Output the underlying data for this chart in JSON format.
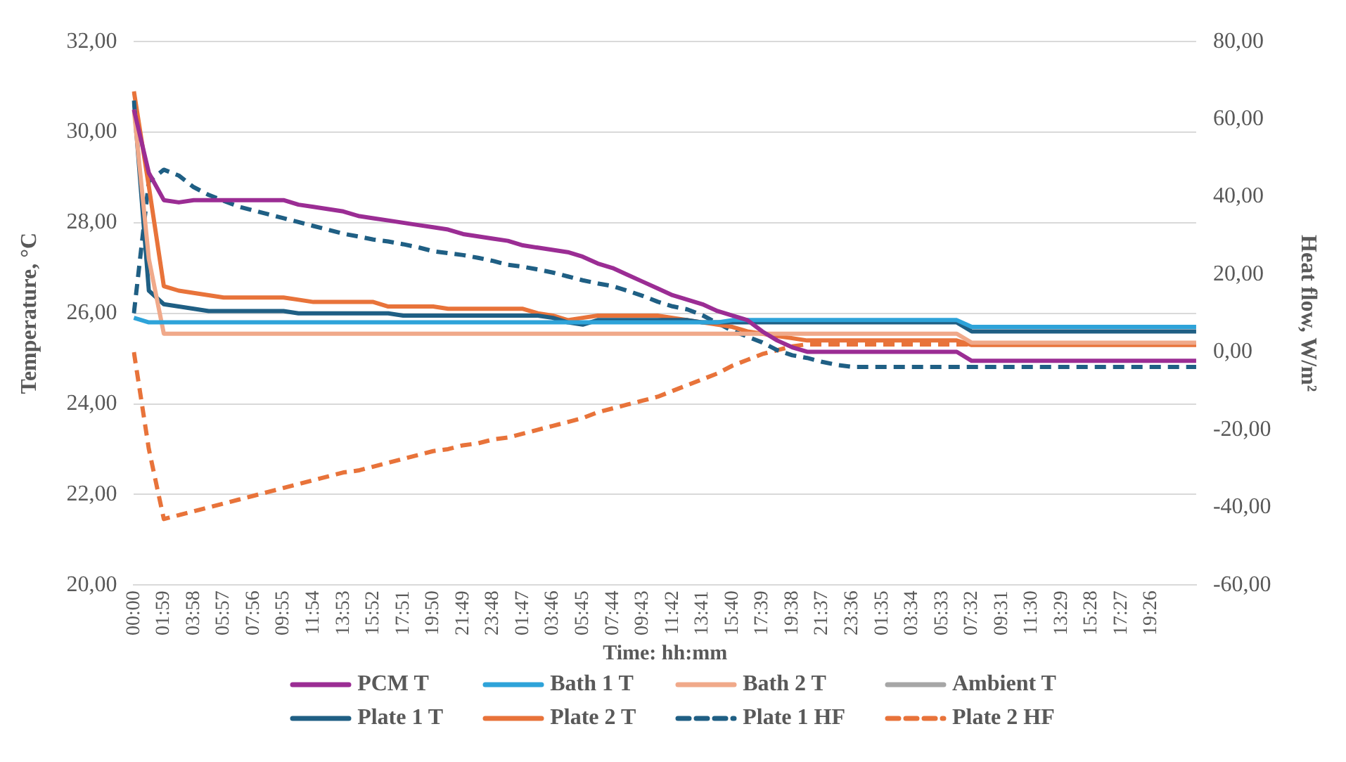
{
  "chart_data": {
    "type": "line",
    "xlabel": "Time: hh:mm",
    "ylabel": "Temperature, °C",
    "y2label": "Heat flow, W/m²",
    "categories": [
      "00:00",
      null,
      "01:59",
      null,
      "03:58",
      null,
      "05:57",
      null,
      "07:56",
      null,
      "09:55",
      null,
      "11:54",
      null,
      "13:53",
      null,
      "15:52",
      null,
      "17:51",
      null,
      "19:50",
      null,
      "21:49",
      null,
      "23:48",
      null,
      "01:47",
      null,
      "03:46",
      null,
      "05:45",
      null,
      "07:44",
      null,
      "09:43",
      null,
      "11:42",
      null,
      "13:41",
      null,
      "15:40",
      null,
      "17:39",
      null,
      "19:38",
      null,
      "21:37",
      null,
      "23:36",
      null,
      "01:35",
      null,
      "03:34",
      null,
      "05:33",
      null,
      "07:32",
      null,
      "09:31",
      null,
      "11:30",
      null,
      "13:29",
      null,
      "15:28",
      null,
      "17:27",
      null,
      "19:26",
      null,
      null,
      null
    ],
    "ylim": [
      20,
      32
    ],
    "yticks": [
      {
        "value": 20,
        "label": "20,00"
      },
      {
        "value": 22,
        "label": "22,00"
      },
      {
        "value": 24,
        "label": "24,00"
      },
      {
        "value": 26,
        "label": "26,00"
      },
      {
        "value": 28,
        "label": "28,00"
      },
      {
        "value": 30,
        "label": "30,00"
      },
      {
        "value": 32,
        "label": "32,00"
      }
    ],
    "y2lim": [
      -60,
      80
    ],
    "y2ticks": [
      {
        "value": -60,
        "label": "-60,00"
      },
      {
        "value": -40,
        "label": "-40,00"
      },
      {
        "value": -20,
        "label": "-20,00"
      },
      {
        "value": 0,
        "label": "0,00"
      },
      {
        "value": 20,
        "label": "20,00"
      },
      {
        "value": 40,
        "label": "40,00"
      },
      {
        "value": 60,
        "label": "60,00"
      },
      {
        "value": 80,
        "label": "80,00"
      }
    ],
    "grid": "y",
    "legend": "bottom",
    "marker": "none",
    "series": [
      {
        "name": "PCM T",
        "color": "#9b2d94",
        "values": [
          30.5,
          29.1,
          28.5,
          28.45,
          28.5,
          28.5,
          28.5,
          28.5,
          28.5,
          28.5,
          28.5,
          28.4,
          28.35,
          28.3,
          28.25,
          28.15,
          28.1,
          28.05,
          28.0,
          27.95,
          27.9,
          27.85,
          27.75,
          27.7,
          27.65,
          27.6,
          27.5,
          27.45,
          27.4,
          27.35,
          27.25,
          27.1,
          27.0,
          26.85,
          26.7,
          26.55,
          26.4,
          26.3,
          26.2,
          26.05,
          25.95,
          25.85,
          25.6,
          25.4,
          25.25,
          25.15,
          25.15,
          25.15,
          25.15,
          25.15,
          25.15,
          25.15,
          25.15,
          25.15,
          25.15,
          25.15,
          24.95,
          24.95,
          24.95,
          24.95,
          24.95,
          24.95,
          24.95,
          24.95,
          24.95,
          24.95,
          24.95,
          24.95,
          24.95,
          24.95,
          24.95,
          24.95
        ]
      },
      {
        "name": "Bath 1 T",
        "color": "#2ea3d9",
        "values": [
          25.9,
          25.8,
          25.8,
          25.8,
          25.8,
          25.8,
          25.8,
          25.8,
          25.8,
          25.8,
          25.8,
          25.8,
          25.8,
          25.8,
          25.8,
          25.8,
          25.8,
          25.8,
          25.8,
          25.8,
          25.8,
          25.8,
          25.8,
          25.8,
          25.8,
          25.8,
          25.8,
          25.8,
          25.8,
          25.8,
          25.8,
          25.8,
          25.8,
          25.8,
          25.8,
          25.8,
          25.8,
          25.8,
          25.8,
          25.8,
          25.85,
          25.85,
          25.85,
          25.85,
          25.85,
          25.85,
          25.85,
          25.85,
          25.85,
          25.85,
          25.85,
          25.85,
          25.85,
          25.85,
          25.85,
          25.85,
          25.7,
          25.7,
          25.7,
          25.7,
          25.7,
          25.7,
          25.7,
          25.7,
          25.7,
          25.7,
          25.7,
          25.7,
          25.7,
          25.7,
          25.7,
          25.7
        ]
      },
      {
        "name": "Bath 2 T",
        "color": "#f0a98a",
        "values": [
          30.5,
          27.2,
          25.55,
          25.55,
          25.55,
          25.55,
          25.55,
          25.55,
          25.55,
          25.55,
          25.55,
          25.55,
          25.55,
          25.55,
          25.55,
          25.55,
          25.55,
          25.55,
          25.55,
          25.55,
          25.55,
          25.55,
          25.55,
          25.55,
          25.55,
          25.55,
          25.55,
          25.55,
          25.55,
          25.55,
          25.55,
          25.55,
          25.55,
          25.55,
          25.55,
          25.55,
          25.55,
          25.55,
          25.55,
          25.55,
          25.55,
          25.55,
          25.55,
          25.55,
          25.55,
          25.55,
          25.55,
          25.55,
          25.55,
          25.55,
          25.55,
          25.55,
          25.55,
          25.55,
          25.55,
          25.55,
          25.35,
          25.35,
          25.35,
          25.35,
          25.35,
          25.35,
          25.35,
          25.35,
          25.35,
          25.35,
          25.35,
          25.35,
          25.35,
          25.35,
          25.35,
          25.35
        ]
      },
      {
        "name": "Ambient T",
        "color": "#a6a6a6",
        "values": [
          null,
          null,
          null,
          null,
          null,
          null,
          null,
          null,
          null,
          null,
          null,
          null,
          null,
          null,
          null,
          null,
          null,
          null,
          null,
          null,
          null,
          null,
          null,
          null,
          null,
          null,
          null,
          null,
          null,
          null,
          null,
          null,
          null,
          null,
          null,
          null,
          null,
          null,
          null,
          null,
          null,
          null,
          null,
          null,
          null,
          null,
          null,
          null,
          null,
          null,
          null,
          null,
          null,
          null,
          null,
          null,
          null,
          null,
          null,
          null,
          null,
          null,
          null,
          null,
          null,
          null,
          null,
          null,
          null,
          null,
          null,
          null
        ]
      },
      {
        "name": "Plate 1 T",
        "color": "#1f5f84",
        "values": [
          30.7,
          26.5,
          26.2,
          26.15,
          26.1,
          26.05,
          26.05,
          26.05,
          26.05,
          26.05,
          26.05,
          26.0,
          26.0,
          26.0,
          26.0,
          26.0,
          26.0,
          26.0,
          25.95,
          25.95,
          25.95,
          25.95,
          25.95,
          25.95,
          25.95,
          25.95,
          25.95,
          25.95,
          25.9,
          25.8,
          25.75,
          25.85,
          25.85,
          25.85,
          25.85,
          25.85,
          25.85,
          25.85,
          25.8,
          25.8,
          25.8,
          25.8,
          25.8,
          25.8,
          25.8,
          25.8,
          25.8,
          25.8,
          25.8,
          25.8,
          25.8,
          25.8,
          25.8,
          25.8,
          25.8,
          25.8,
          25.6,
          25.6,
          25.6,
          25.6,
          25.6,
          25.6,
          25.6,
          25.6,
          25.6,
          25.6,
          25.6,
          25.6,
          25.6,
          25.6,
          25.6,
          25.6
        ]
      },
      {
        "name": "Plate 2 T",
        "color": "#e8733a",
        "values": [
          30.9,
          28.8,
          26.6,
          26.5,
          26.45,
          26.4,
          26.35,
          26.35,
          26.35,
          26.35,
          26.35,
          26.3,
          26.25,
          26.25,
          26.25,
          26.25,
          26.25,
          26.15,
          26.15,
          26.15,
          26.15,
          26.1,
          26.1,
          26.1,
          26.1,
          26.1,
          26.1,
          26.0,
          25.95,
          25.85,
          25.9,
          25.95,
          25.95,
          25.95,
          25.95,
          25.95,
          25.9,
          25.85,
          25.8,
          25.75,
          25.7,
          25.6,
          25.55,
          25.5,
          25.45,
          25.4,
          25.4,
          25.4,
          25.4,
          25.4,
          25.4,
          25.4,
          25.4,
          25.4,
          25.4,
          25.4,
          25.3,
          25.3,
          25.3,
          25.3,
          25.3,
          25.3,
          25.3,
          25.3,
          25.3,
          25.3,
          25.3,
          25.3,
          25.3,
          25.3,
          25.3,
          25.3
        ]
      },
      {
        "name": "Plate 1 HF",
        "color": "#1f5f84",
        "axis": "y2",
        "line_style": "dashed",
        "values": [
          10,
          44,
          47,
          45.5,
          42.5,
          40.5,
          39,
          37.5,
          36.5,
          35.5,
          34.5,
          33.5,
          32.5,
          31.5,
          30.5,
          29.8,
          29,
          28.5,
          27.8,
          27,
          26,
          25.5,
          25,
          24.3,
          23.5,
          22.5,
          22,
          21.3,
          20.5,
          19.5,
          18.5,
          17.7,
          17,
          15.8,
          14.5,
          13,
          11.8,
          11,
          9.5,
          7.5,
          5.5,
          4,
          2.5,
          0.5,
          -0.8,
          -1.5,
          -2.5,
          -3.3,
          -3.8,
          -3.8,
          -3.8,
          -3.8,
          -3.8,
          -3.8,
          -3.8,
          -3.8,
          -3.8,
          -3.8,
          -3.8,
          -3.8,
          -3.8,
          -3.8,
          -3.8,
          -3.8,
          -3.8,
          -3.8,
          -3.8,
          -3.8,
          -3.8,
          -3.8,
          -3.8,
          -3.8
        ]
      },
      {
        "name": "Plate 2 HF",
        "color": "#e8733a",
        "axis": "y2",
        "line_style": "dashed",
        "values": [
          0,
          -25,
          -43,
          -42,
          -41,
          -40,
          -39,
          -38,
          -37,
          -36,
          -35,
          -34,
          -33,
          -32,
          -31,
          -30.5,
          -29.5,
          -28.5,
          -27.5,
          -26.5,
          -25.5,
          -25,
          -24,
          -23.5,
          -22.5,
          -22,
          -21,
          -20,
          -19,
          -18,
          -17,
          -15.5,
          -14.5,
          -13.5,
          -12.5,
          -11.5,
          -10,
          -8.5,
          -7,
          -5.5,
          -3.5,
          -2,
          -0.5,
          0.5,
          1.5,
          2,
          2,
          2,
          2,
          2,
          2,
          2,
          2,
          2,
          2,
          2,
          2,
          2,
          2,
          2,
          2,
          2,
          2,
          2,
          2,
          2,
          2,
          2,
          2,
          2,
          2,
          2
        ]
      }
    ]
  }
}
